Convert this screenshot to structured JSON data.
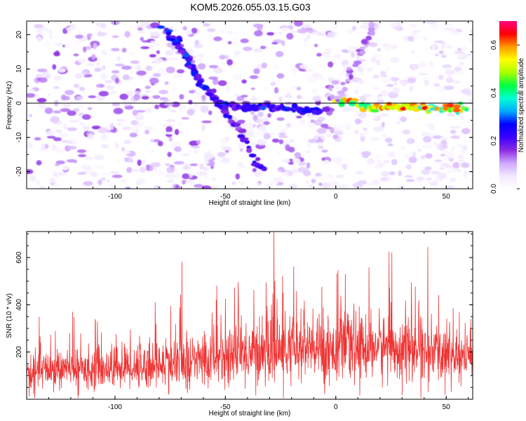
{
  "title": "KOM5.2026.055.03.15.G03",
  "chart_data": [
    {
      "type": "heatmap",
      "xlabel": "Height of straight line (km)",
      "ylabel": "Frequency (Hz)",
      "xlim": [
        -140,
        62
      ],
      "ylim": [
        -25,
        24
      ],
      "xticks": [
        -100,
        -50,
        0,
        50
      ],
      "yticks": [
        -20,
        -10,
        0,
        10,
        20
      ],
      "colorbar": {
        "label": "Normalized spectral amplitude",
        "range": [
          0,
          0.7
        ],
        "ticks": [
          0.0,
          0.2,
          0.4,
          0.6
        ],
        "colors": [
          "#ffffff",
          "#f2e8ff",
          "#cfa6ff",
          "#8a2be2",
          "#3a00ff",
          "#0000ff",
          "#00aaff",
          "#00ffd5",
          "#00ff40",
          "#aaff00",
          "#ffff00",
          "#ff9a00",
          "#ff0000",
          "#ff0080"
        ]
      },
      "features": [
        {
          "name": "descending track",
          "points": [
            [
              -72,
              20
            ],
            [
              -65,
              10
            ],
            [
              -58,
              3
            ],
            [
              -50,
              -3
            ],
            [
              -44,
              -7
            ],
            [
              -40,
              -12
            ],
            [
              -36,
              -18
            ],
            [
              -32,
              -20
            ]
          ],
          "amplitude": 0.25
        },
        {
          "name": "steep track",
          "points": [
            [
              -78,
              22
            ],
            [
              -68,
              14
            ],
            [
              -60,
              5
            ],
            [
              -52,
              0
            ],
            [
              -44,
              -1
            ],
            [
              -30,
              -1
            ],
            [
              -15,
              -2
            ],
            [
              -5,
              -2.5
            ]
          ],
          "amplitude": 0.3
        },
        {
          "name": "horizontal line",
          "points": [
            [
              0,
              1
            ],
            [
              8,
              0
            ],
            [
              15,
              -1
            ],
            [
              30,
              -1
            ],
            [
              45,
              -1.5
            ],
            [
              60,
              -1.5
            ]
          ],
          "amplitude": 0.65
        },
        {
          "name": "rising track",
          "points": [
            [
              0,
              0
            ],
            [
              5,
              7
            ],
            [
              10,
              14
            ],
            [
              15,
              20
            ],
            [
              18,
              24
            ]
          ],
          "amplitude": 0.15
        }
      ]
    },
    {
      "type": "line",
      "xlabel": "Height of straight line (km)",
      "ylabel": "SNR (10 * v/v)",
      "xlim": [
        -140,
        62
      ],
      "ylim": [
        0,
        710
      ],
      "xticks": [
        -100,
        -50,
        0,
        50
      ],
      "yticks": [
        200,
        400,
        600
      ],
      "color": "#ee3333",
      "envelope": [
        {
          "x": -140,
          "mean": 120,
          "spread": 70
        },
        {
          "x": -100,
          "mean": 135,
          "spread": 85
        },
        {
          "x": -70,
          "mean": 150,
          "spread": 100
        },
        {
          "x": -40,
          "mean": 200,
          "spread": 130
        },
        {
          "x": -10,
          "mean": 210,
          "spread": 140
        },
        {
          "x": 20,
          "mean": 225,
          "spread": 130
        },
        {
          "x": 62,
          "mean": 175,
          "spread": 110
        }
      ],
      "peak": {
        "x": -28,
        "y": 710
      }
    }
  ]
}
